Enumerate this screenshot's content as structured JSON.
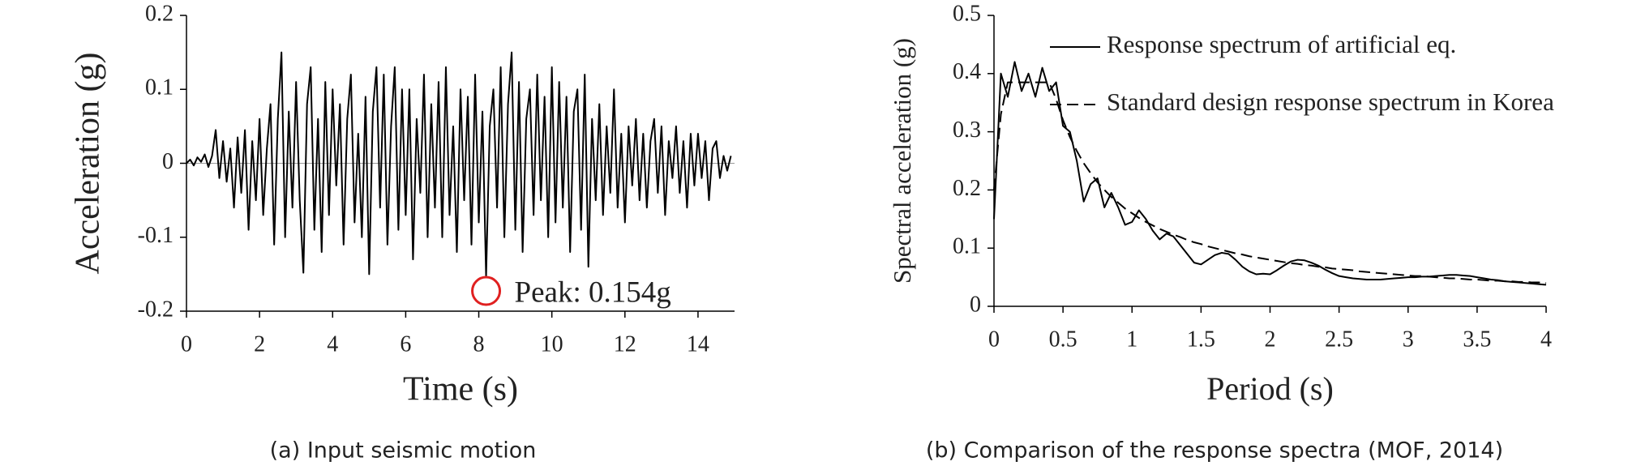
{
  "chart_data": [
    {
      "type": "line",
      "title": "",
      "caption": "(a) Input seismic motion",
      "xlabel": "Time (s)",
      "ylabel": "Acceleration (g)",
      "xlim": [
        0,
        15
      ],
      "ylim": [
        -0.2,
        0.2
      ],
      "xticks": [
        0,
        2,
        4,
        6,
        8,
        10,
        12,
        14
      ],
      "yticks": [
        0.2,
        0.1,
        0,
        -0.1,
        -0.2
      ],
      "zero_line": true,
      "annotation": {
        "text": "Peak: 0.154g",
        "x": 8.2,
        "y": -0.154,
        "color": "#e02020"
      },
      "x": [
        0,
        0.1,
        0.2,
        0.3,
        0.4,
        0.5,
        0.6,
        0.7,
        0.8,
        0.9,
        1,
        1.1,
        1.2,
        1.3,
        1.4,
        1.5,
        1.6,
        1.7,
        1.8,
        1.9,
        2,
        2.1,
        2.2,
        2.3,
        2.4,
        2.5,
        2.6,
        2.7,
        2.8,
        2.9,
        3,
        3.1,
        3.2,
        3.3,
        3.4,
        3.5,
        3.6,
        3.7,
        3.8,
        3.9,
        4,
        4.1,
        4.2,
        4.3,
        4.4,
        4.5,
        4.6,
        4.7,
        4.8,
        4.9,
        5,
        5.1,
        5.2,
        5.3,
        5.4,
        5.5,
        5.6,
        5.7,
        5.8,
        5.9,
        6,
        6.1,
        6.2,
        6.3,
        6.4,
        6.5,
        6.6,
        6.7,
        6.8,
        6.9,
        7,
        7.1,
        7.2,
        7.3,
        7.4,
        7.5,
        7.6,
        7.7,
        7.8,
        7.9,
        8,
        8.1,
        8.2,
        8.3,
        8.4,
        8.5,
        8.6,
        8.7,
        8.8,
        8.9,
        9,
        9.1,
        9.2,
        9.3,
        9.4,
        9.5,
        9.6,
        9.7,
        9.8,
        9.9,
        10,
        10.1,
        10.2,
        10.3,
        10.4,
        10.5,
        10.6,
        10.7,
        10.8,
        10.9,
        11,
        11.1,
        11.2,
        11.3,
        11.4,
        11.5,
        11.6,
        11.7,
        11.8,
        11.9,
        12,
        12.1,
        12.2,
        12.3,
        12.4,
        12.5,
        12.6,
        12.7,
        12.8,
        12.9,
        13,
        13.1,
        13.2,
        13.3,
        13.4,
        13.5,
        13.6,
        13.7,
        13.8,
        13.9,
        14,
        14.1,
        14.2,
        14.3,
        14.4,
        14.5,
        14.6,
        14.7,
        14.8,
        14.9
      ],
      "series": [
        {
          "name": "Input seismic motion",
          "color": "#000000",
          "dash": false,
          "values": [
            0,
            0.005,
            -0.003,
            0.008,
            0.002,
            0.012,
            -0.005,
            0.01,
            0.045,
            -0.02,
            0.03,
            -0.025,
            0.02,
            -0.06,
            0.035,
            -0.04,
            0.045,
            -0.09,
            0.03,
            -0.05,
            0.06,
            -0.07,
            0.02,
            0.08,
            -0.11,
            0.06,
            0.15,
            -0.1,
            0.07,
            -0.06,
            0.11,
            -0.05,
            -0.148,
            0.08,
            0.13,
            -0.09,
            0.06,
            -0.12,
            0.11,
            -0.07,
            0.1,
            -0.03,
            0.08,
            -0.11,
            0.06,
            0.12,
            -0.08,
            0.04,
            -0.1,
            0.09,
            -0.15,
            0.07,
            0.13,
            -0.06,
            0.12,
            -0.11,
            0.05,
            0.13,
            -0.09,
            0.1,
            -0.07,
            0.1,
            -0.13,
            0.06,
            -0.04,
            0.12,
            -0.1,
            0.08,
            -0.06,
            0.11,
            -0.1,
            0.13,
            -0.07,
            0.05,
            -0.12,
            0.1,
            -0.05,
            0.09,
            -0.11,
            0.12,
            -0.08,
            0.07,
            -0.154,
            0.05,
            0.1,
            -0.06,
            0.13,
            -0.1,
            0.08,
            0.15,
            -0.09,
            0.11,
            -0.12,
            0.06,
            0.1,
            -0.07,
            0.12,
            -0.05,
            0.09,
            -0.1,
            0.13,
            -0.08,
            0.11,
            -0.06,
            0.09,
            -0.12,
            0.07,
            0.1,
            -0.09,
            0.12,
            -0.14,
            0.06,
            -0.05,
            0.08,
            -0.07,
            0.05,
            -0.04,
            0.1,
            -0.06,
            0.04,
            -0.08,
            0.05,
            -0.03,
            0.06,
            -0.05,
            0.04,
            -0.06,
            0.03,
            0.06,
            -0.04,
            0.05,
            -0.07,
            0.03,
            -0.02,
            0.05,
            -0.04,
            0.03,
            -0.06,
            0.04,
            -0.03,
            0.04,
            -0.02,
            0.03,
            -0.05,
            0.02,
            0.03,
            -0.02,
            0.01,
            -0.01,
            0.01
          ]
        }
      ]
    },
    {
      "type": "line",
      "title": "",
      "caption": "(b) Comparison of the response spectra (MOF, 2014)",
      "xlabel": "Period (s)",
      "ylabel": "Spectral acceleration (g)",
      "xlim": [
        0,
        4
      ],
      "ylim": [
        0,
        0.5
      ],
      "xticks": [
        0,
        0.5,
        1,
        1.5,
        2,
        2.5,
        3,
        3.5,
        4
      ],
      "yticks": [
        0.5,
        0.4,
        0.3,
        0.2,
        0.1,
        0
      ],
      "zero_line": false,
      "legend": "upper right",
      "x": [
        0,
        0.05,
        0.1,
        0.15,
        0.2,
        0.25,
        0.3,
        0.35,
        0.4,
        0.45,
        0.5,
        0.55,
        0.6,
        0.65,
        0.7,
        0.75,
        0.8,
        0.85,
        0.9,
        0.95,
        1,
        1.05,
        1.1,
        1.15,
        1.2,
        1.25,
        1.3,
        1.35,
        1.4,
        1.45,
        1.5,
        1.55,
        1.6,
        1.65,
        1.7,
        1.75,
        1.8,
        1.85,
        1.9,
        1.95,
        2,
        2.05,
        2.1,
        2.15,
        2.2,
        2.25,
        2.3,
        2.35,
        2.4,
        2.45,
        2.5,
        2.55,
        2.6,
        2.65,
        2.7,
        2.75,
        2.8,
        2.85,
        2.9,
        2.95,
        3,
        3.05,
        3.1,
        3.15,
        3.2,
        3.25,
        3.3,
        3.35,
        3.4,
        3.45,
        3.5,
        3.55,
        3.6,
        3.65,
        3.7,
        3.75,
        3.8,
        3.85,
        3.9,
        3.95,
        4
      ],
      "series": [
        {
          "name": "Response spectrum of artificial eq.",
          "color": "#000000",
          "dash": false,
          "values": [
            0.15,
            0.4,
            0.36,
            0.42,
            0.37,
            0.4,
            0.36,
            0.41,
            0.37,
            0.385,
            0.31,
            0.3,
            0.25,
            0.18,
            0.21,
            0.22,
            0.17,
            0.195,
            0.17,
            0.14,
            0.145,
            0.165,
            0.15,
            0.13,
            0.115,
            0.125,
            0.12,
            0.105,
            0.09,
            0.075,
            0.072,
            0.08,
            0.088,
            0.092,
            0.09,
            0.08,
            0.068,
            0.06,
            0.055,
            0.056,
            0.055,
            0.062,
            0.07,
            0.077,
            0.08,
            0.079,
            0.075,
            0.07,
            0.063,
            0.057,
            0.052,
            0.05,
            0.048,
            0.047,
            0.046,
            0.046,
            0.046,
            0.047,
            0.048,
            0.049,
            0.05,
            0.05,
            0.051,
            0.051,
            0.052,
            0.053,
            0.054,
            0.054,
            0.053,
            0.052,
            0.05,
            0.048,
            0.046,
            0.045,
            0.043,
            0.042,
            0.041,
            0.04,
            0.039,
            0.038,
            0.037
          ]
        },
        {
          "name": "Standard design response spectrum in Korea",
          "color": "#000000",
          "dash": true,
          "values": [
            0.2,
            0.33,
            0.385,
            0.385,
            0.385,
            0.385,
            0.385,
            0.385,
            0.385,
            0.356,
            0.32,
            0.291,
            0.267,
            0.246,
            0.229,
            0.213,
            0.2,
            0.188,
            0.178,
            0.168,
            0.16,
            0.152,
            0.145,
            0.139,
            0.133,
            0.128,
            0.123,
            0.119,
            0.114,
            0.11,
            0.107,
            0.103,
            0.1,
            0.097,
            0.094,
            0.091,
            0.089,
            0.086,
            0.084,
            0.082,
            0.08,
            0.078,
            0.076,
            0.074,
            0.073,
            0.071,
            0.07,
            0.068,
            0.067,
            0.065,
            0.064,
            0.063,
            0.062,
            0.06,
            0.059,
            0.058,
            0.057,
            0.056,
            0.055,
            0.054,
            0.053,
            0.052,
            0.052,
            0.051,
            0.05,
            0.049,
            0.048,
            0.048,
            0.047,
            0.046,
            0.046,
            0.045,
            0.044,
            0.044,
            0.043,
            0.043,
            0.042,
            0.042,
            0.041,
            0.041,
            0.04
          ]
        }
      ]
    }
  ]
}
